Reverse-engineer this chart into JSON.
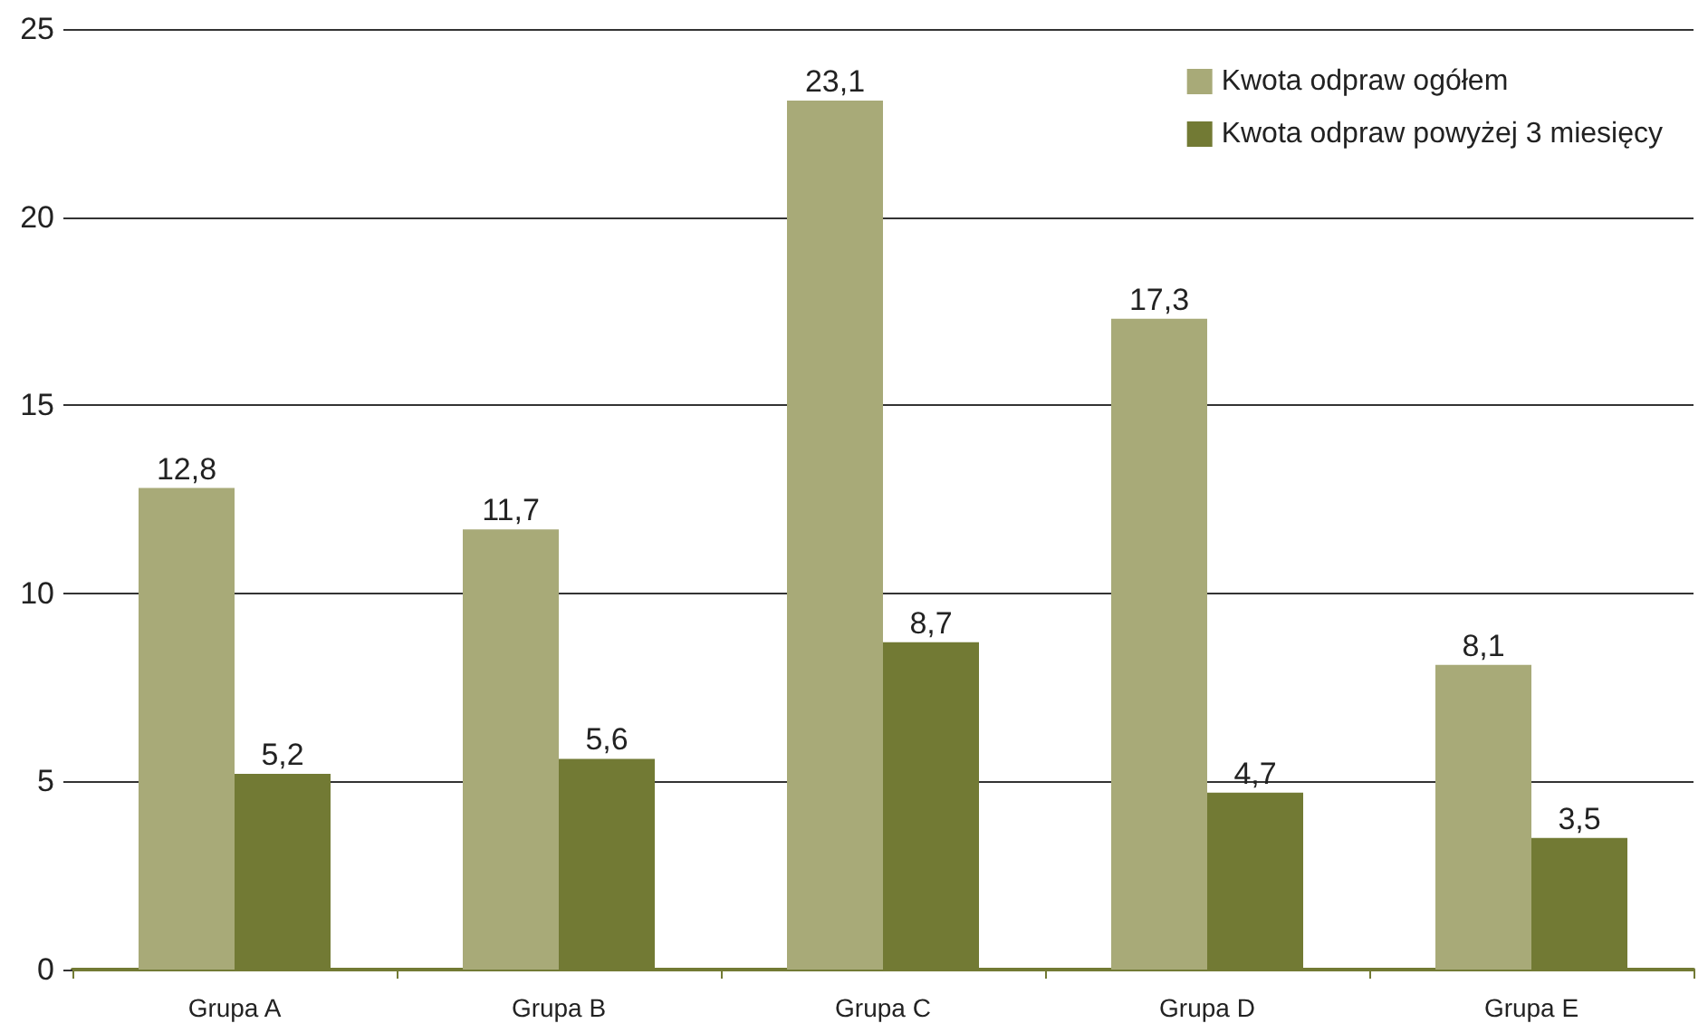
{
  "chart_data": {
    "type": "bar",
    "categories": [
      "Grupa A",
      "Grupa B",
      "Grupa C",
      "Grupa D",
      "Grupa E"
    ],
    "series": [
      {
        "name": "Kwota odpraw ogółem",
        "color": "#a8aa78",
        "values": [
          12.8,
          11.7,
          23.1,
          17.3,
          8.1
        ],
        "value_labels": [
          "12,8",
          "11,7",
          "23,1",
          "17,3",
          "8,1"
        ]
      },
      {
        "name": "Kwota odpraw powyżej 3 miesięcy",
        "color": "#727a34",
        "values": [
          5.2,
          5.6,
          8.7,
          4.7,
          3.5
        ],
        "value_labels": [
          "5,2",
          "5,6",
          "8,7",
          "4,7",
          "3,5"
        ]
      }
    ],
    "ylim": [
      0,
      25
    ],
    "yticks": [
      0,
      5,
      10,
      15,
      20,
      25
    ],
    "grid": "y",
    "legend": "top right"
  }
}
